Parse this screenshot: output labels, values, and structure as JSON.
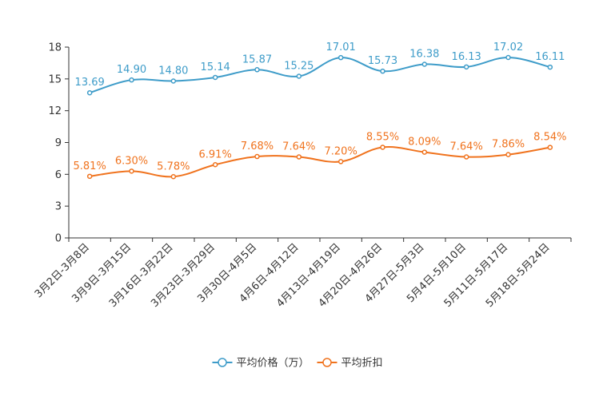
{
  "chart_data": {
    "type": "line",
    "title": "",
    "xlabel": "",
    "ylabel": "",
    "ylim": [
      0,
      18
    ],
    "yticks": [
      0,
      3,
      6,
      9,
      12,
      15,
      18
    ],
    "grid": false,
    "legend_position": "bottom-center",
    "categories": [
      "3月2日-3月8日",
      "3月9日-3月15日",
      "3月16日-3月22日",
      "3月23日-3月29日",
      "3月30日-4月5日",
      "4月6日-4月12日",
      "4月13日-4月19日",
      "4月20日-4月26日",
      "4月27日-5月3日",
      "5月4日-5月10日",
      "5月11日-5月17日",
      "5月18日-5月24日"
    ],
    "series": [
      {
        "name": "平均价格（万）",
        "color": "#3e9cc9",
        "values": [
          13.69,
          14.9,
          14.8,
          15.14,
          15.87,
          15.25,
          17.01,
          15.73,
          16.38,
          16.13,
          17.02,
          16.11
        ],
        "labels": [
          "13.69",
          "14.90",
          "14.80",
          "15.14",
          "15.87",
          "15.25",
          "17.01",
          "15.73",
          "16.38",
          "16.13",
          "17.02",
          "16.11"
        ]
      },
      {
        "name": "平均折扣",
        "color": "#f0731e",
        "values": [
          5.81,
          6.3,
          5.78,
          6.91,
          7.68,
          7.64,
          7.2,
          8.55,
          8.09,
          7.64,
          7.86,
          8.54
        ],
        "labels": [
          "5.81%",
          "6.30%",
          "5.78%",
          "6.91%",
          "7.68%",
          "7.64%",
          "7.20%",
          "8.55%",
          "8.09%",
          "7.64%",
          "7.86%",
          "8.54%"
        ]
      }
    ]
  }
}
